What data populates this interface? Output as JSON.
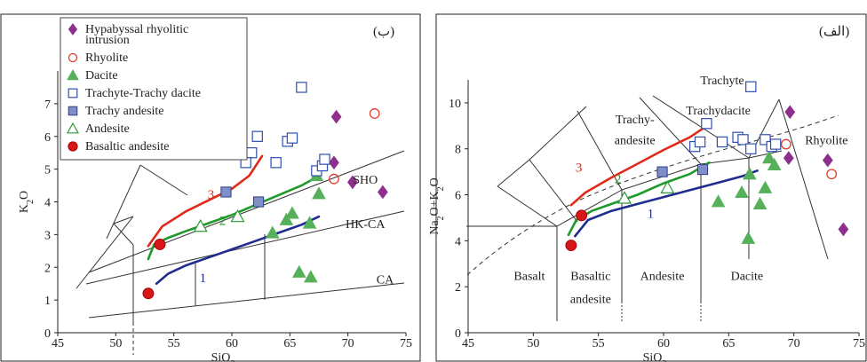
{
  "figure": {
    "panel_left_tag": "(ب)",
    "panel_right_tag": "(الف)",
    "colors": {
      "frame": "#222222",
      "field": "#333333",
      "hypabyssal": "#8e2f8e",
      "rhyolite": "#e03c2b",
      "dacite": "#56b05a",
      "trachyte": "#2f4fb0",
      "trachy_andesite": "#7f8ec8",
      "andesite": "#2e9a3a",
      "basaltic_andesite": "#d81818",
      "trend1": "#1f2d8f",
      "trend2": "#1f9a2a",
      "trend3": "#e02a1a"
    }
  },
  "legend": [
    {
      "key": "hypabyssal",
      "label_lines": [
        "Hypabyssal rhyolitic",
        "intrusion"
      ],
      "marker": "diamond"
    },
    {
      "key": "rhyolite",
      "label_lines": [
        "Rhyolite"
      ],
      "marker": "circle-open"
    },
    {
      "key": "dacite",
      "label_lines": [
        "Dacite"
      ],
      "marker": "triangle-filled"
    },
    {
      "key": "trachyte",
      "label_lines": [
        "Trachyte-Trachy dacite"
      ],
      "marker": "square-open"
    },
    {
      "key": "trachy_andesite",
      "label_lines": [
        "Trachy andesite"
      ],
      "marker": "square-filled"
    },
    {
      "key": "andesite",
      "label_lines": [
        "Andesite"
      ],
      "marker": "triangle-open"
    },
    {
      "key": "basaltic_andesite",
      "label_lines": [
        "Basaltic andesite"
      ],
      "marker": "circle-filled"
    }
  ],
  "chart_data": [
    {
      "type": "scatter",
      "panel": "left",
      "xlabel": "SiO2",
      "ylabel": "K2O",
      "xlim": [
        45,
        75
      ],
      "ylim": [
        0,
        8
      ],
      "xticks": [
        45,
        50,
        55,
        60,
        65,
        70,
        75
      ],
      "yticks": [
        0,
        1,
        2,
        3,
        4,
        5,
        6,
        7
      ],
      "field_labels": [
        {
          "text": "SHO",
          "x": 71.5,
          "y": 4.55
        },
        {
          "text": "HK-CA",
          "x": 71.5,
          "y": 3.2
        },
        {
          "text": "CA",
          "x": 73.2,
          "y": 1.5
        }
      ],
      "trend_labels": [
        {
          "text": "1",
          "x": 57.5,
          "y": 1.55,
          "key": "trend1"
        },
        {
          "text": "2",
          "x": 59.2,
          "y": 3.3,
          "key": "trend2"
        },
        {
          "text": "3",
          "x": 58.2,
          "y": 4.1,
          "key": "trend3"
        }
      ],
      "series": [
        {
          "key": "hypabyssal",
          "points": [
            [
              69.0,
              6.6
            ],
            [
              68.8,
              5.2
            ],
            [
              70.4,
              4.6
            ],
            [
              73.0,
              4.3
            ]
          ]
        },
        {
          "key": "rhyolite",
          "points": [
            [
              72.3,
              6.7
            ],
            [
              68.8,
              4.7
            ]
          ]
        },
        {
          "key": "dacite",
          "points": [
            [
              67.3,
              4.8
            ],
            [
              67.5,
              4.25
            ],
            [
              64.7,
              3.45
            ],
            [
              65.2,
              3.65
            ],
            [
              66.7,
              3.35
            ],
            [
              63.5,
              3.05
            ],
            [
              65.8,
              1.85
            ],
            [
              66.8,
              1.7
            ]
          ]
        },
        {
          "key": "trachyte",
          "points": [
            [
              66.0,
              7.5
            ],
            [
              62.2,
              6.0
            ],
            [
              61.3,
              5.5
            ],
            [
              61.7,
              5.5
            ],
            [
              61.2,
              5.2
            ],
            [
              63.8,
              5.2
            ],
            [
              64.8,
              5.85
            ],
            [
              65.2,
              5.95
            ],
            [
              67.3,
              4.95
            ],
            [
              67.8,
              5.1
            ],
            [
              68.0,
              5.3
            ]
          ]
        },
        {
          "key": "trachy_andesite",
          "points": [
            [
              59.5,
              4.3
            ],
            [
              62.3,
              4.0
            ]
          ]
        },
        {
          "key": "andesite",
          "points": [
            [
              57.3,
              3.25
            ],
            [
              60.5,
              3.55
            ]
          ]
        },
        {
          "key": "basaltic_andesite",
          "points": [
            [
              52.8,
              1.2
            ],
            [
              53.8,
              2.7
            ]
          ]
        }
      ],
      "trends": [
        {
          "key": "trend1",
          "points": [
            [
              53.5,
              1.5
            ],
            [
              54.5,
              1.8
            ],
            [
              56,
              2.05
            ],
            [
              58,
              2.3
            ],
            [
              60,
              2.55
            ],
            [
              62,
              2.8
            ],
            [
              64,
              3.05
            ],
            [
              66,
              3.3
            ],
            [
              67.5,
              3.55
            ]
          ]
        },
        {
          "key": "trend2",
          "points": [
            [
              52.8,
              2.25
            ],
            [
              53.3,
              2.7
            ],
            [
              54.5,
              2.9
            ],
            [
              56,
              3.1
            ],
            [
              58,
              3.35
            ],
            [
              60,
              3.6
            ],
            [
              62,
              3.9
            ],
            [
              64,
              4.2
            ],
            [
              66,
              4.5
            ],
            [
              67,
              4.7
            ]
          ]
        },
        {
          "key": "trend3",
          "points": [
            [
              52.8,
              2.65
            ],
            [
              54,
              3.25
            ],
            [
              56,
              3.7
            ],
            [
              58,
              4.05
            ],
            [
              60,
              4.4
            ],
            [
              61.5,
              4.8
            ],
            [
              62.6,
              5.4
            ]
          ]
        }
      ]
    },
    {
      "type": "scatter",
      "panel": "right",
      "xlabel": "SiO2",
      "ylabel": "Na2O+K2O",
      "xlim": [
        45,
        75
      ],
      "ylim": [
        0,
        11
      ],
      "xticks": [
        45,
        50,
        55,
        60,
        65,
        70,
        75
      ],
      "yticks": [
        0,
        2,
        4,
        6,
        8,
        10
      ],
      "field_labels": [
        {
          "text": "Trachyte",
          "x": 64.5,
          "y": 10.8
        },
        {
          "text": "Trachydacite",
          "x": 64.2,
          "y": 9.5
        },
        {
          "text": "Trachy-",
          "x": 57.8,
          "y": 9.1
        },
        {
          "text": "andesite",
          "x": 57.8,
          "y": 8.2
        },
        {
          "text": "Rhyolite",
          "x": 72.5,
          "y": 8.2
        },
        {
          "text": "Basalt",
          "x": 49.7,
          "y": 2.3
        },
        {
          "text": "Basaltic",
          "x": 54.4,
          "y": 2.3
        },
        {
          "text": "andesite",
          "x": 54.4,
          "y": 1.3
        },
        {
          "text": "Andesite",
          "x": 59.9,
          "y": 2.3
        },
        {
          "text": "Dacite",
          "x": 66.4,
          "y": 2.3
        }
      ],
      "trend_labels": [
        {
          "text": "1",
          "x": 59.0,
          "y": 5.0,
          "key": "trend1"
        },
        {
          "text": "2",
          "x": 56.5,
          "y": 6.5,
          "key": "trend2"
        },
        {
          "text": "3",
          "x": 53.5,
          "y": 7.0,
          "key": "trend3"
        }
      ],
      "series": [
        {
          "key": "hypabyssal",
          "points": [
            [
              69.7,
              9.6
            ],
            [
              69.6,
              7.6
            ],
            [
              72.6,
              7.5
            ],
            [
              73.8,
              4.5
            ]
          ]
        },
        {
          "key": "rhyolite",
          "points": [
            [
              69.4,
              8.2
            ],
            [
              72.9,
              6.9
            ]
          ]
        },
        {
          "key": "dacite",
          "points": [
            [
              64.2,
              5.7
            ],
            [
              66.0,
              6.1
            ],
            [
              66.6,
              6.9
            ],
            [
              67.8,
              6.3
            ],
            [
              67.4,
              5.6
            ],
            [
              68.1,
              7.6
            ],
            [
              68.5,
              7.3
            ],
            [
              66.5,
              4.1
            ]
          ]
        },
        {
          "key": "trachyte",
          "points": [
            [
              62.4,
              8.1
            ],
            [
              62.8,
              8.3
            ],
            [
              63.3,
              9.1
            ],
            [
              64.5,
              8.3
            ],
            [
              65.7,
              8.5
            ],
            [
              66.1,
              8.4
            ],
            [
              66.7,
              8.0
            ],
            [
              66.7,
              10.7
            ],
            [
              67.8,
              8.4
            ],
            [
              68.3,
              8.1
            ],
            [
              68.6,
              8.2
            ]
          ]
        },
        {
          "key": "trachy_andesite",
          "points": [
            [
              59.9,
              7.0
            ],
            [
              63.0,
              7.1
            ]
          ]
        },
        {
          "key": "andesite",
          "points": [
            [
              57.0,
              5.85
            ],
            [
              60.3,
              6.3
            ]
          ]
        },
        {
          "key": "basaltic_andesite",
          "points": [
            [
              52.9,
              3.8
            ],
            [
              53.7,
              5.1
            ]
          ]
        }
      ],
      "trends": [
        {
          "key": "trend1",
          "points": [
            [
              53.2,
              4.2
            ],
            [
              54.2,
              4.9
            ],
            [
              56,
              5.3
            ],
            [
              58,
              5.6
            ],
            [
              60,
              5.9
            ],
            [
              62,
              6.2
            ],
            [
              64,
              6.5
            ],
            [
              66,
              6.8
            ],
            [
              67.2,
              7.05
            ]
          ]
        },
        {
          "key": "trend2",
          "points": [
            [
              52.7,
              4.25
            ],
            [
              53.3,
              4.9
            ],
            [
              54.5,
              5.3
            ],
            [
              56,
              5.6
            ],
            [
              58,
              6.0
            ],
            [
              60,
              6.5
            ],
            [
              62,
              6.9
            ],
            [
              63.5,
              7.4
            ]
          ]
        },
        {
          "key": "trend3",
          "points": [
            [
              52.9,
              5.55
            ],
            [
              54,
              6.1
            ],
            [
              56,
              6.75
            ],
            [
              58,
              7.35
            ],
            [
              60,
              7.95
            ],
            [
              62,
              8.5
            ],
            [
              63.6,
              9.1
            ]
          ]
        }
      ]
    }
  ]
}
